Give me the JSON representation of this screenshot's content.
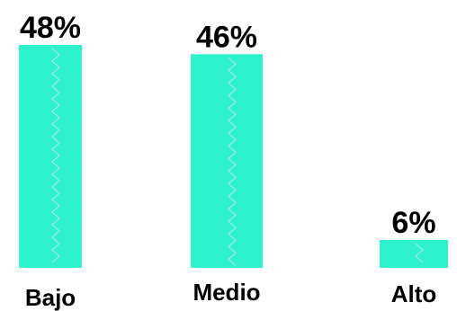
{
  "chart_data": {
    "type": "bar",
    "categories": [
      "Bajo",
      "Medio",
      "Alto"
    ],
    "values": [
      48,
      46,
      6
    ],
    "value_labels": [
      "48%",
      "46%",
      "6%"
    ],
    "bar_color": "#2ef2cc",
    "texture_color": "#cfe9e2",
    "ylim": [
      0,
      48
    ],
    "grid": false,
    "legend": "none"
  }
}
